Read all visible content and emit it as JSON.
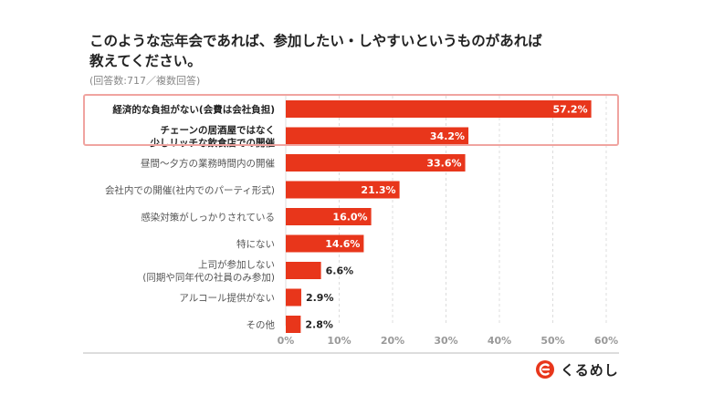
{
  "header": {
    "title_line1": "このような忘年会であれば、参加したい・しやすいというものがあれば",
    "title_line2": "教えてください。",
    "subtitle": "(回答数:717／複数回答)"
  },
  "brand": {
    "name": "くるめし",
    "accent": "#e8361b"
  },
  "chart_data": {
    "type": "bar",
    "orientation": "horizontal",
    "categories": [
      [
        "経済的な負担がない(会費は会社負担)"
      ],
      [
        "チェーンの居酒屋ではなく",
        "少しリッチな飲食店での開催"
      ],
      [
        "昼間〜夕方の業務時間内の開催"
      ],
      [
        "会社内での開催(社内でのパーティ形式)"
      ],
      [
        "感染対策がしっかりされている"
      ],
      [
        "特にない"
      ],
      [
        "上司が参加しない",
        "(同期や同年代の社員のみ参加)"
      ],
      [
        "アルコール提供がない"
      ],
      [
        "その他"
      ]
    ],
    "values": [
      57.2,
      34.2,
      33.6,
      21.3,
      16.0,
      14.6,
      6.6,
      2.9,
      2.8
    ],
    "value_labels": [
      "57.2%",
      "34.2%",
      "33.6%",
      "21.3%",
      "16.0%",
      "14.6%",
      "6.6%",
      "2.9%",
      "2.8%"
    ],
    "highlighted_categories": [
      0,
      1
    ],
    "xlim": [
      0,
      60
    ],
    "xticks": [
      0,
      10,
      20,
      30,
      40,
      50,
      60
    ],
    "xtick_labels": [
      "0%",
      "10%",
      "20%",
      "30%",
      "40%",
      "50%",
      "60%"
    ],
    "bar_color": "#e8361b",
    "highlight_border_color": "#f0a4a0",
    "grid": true
  }
}
